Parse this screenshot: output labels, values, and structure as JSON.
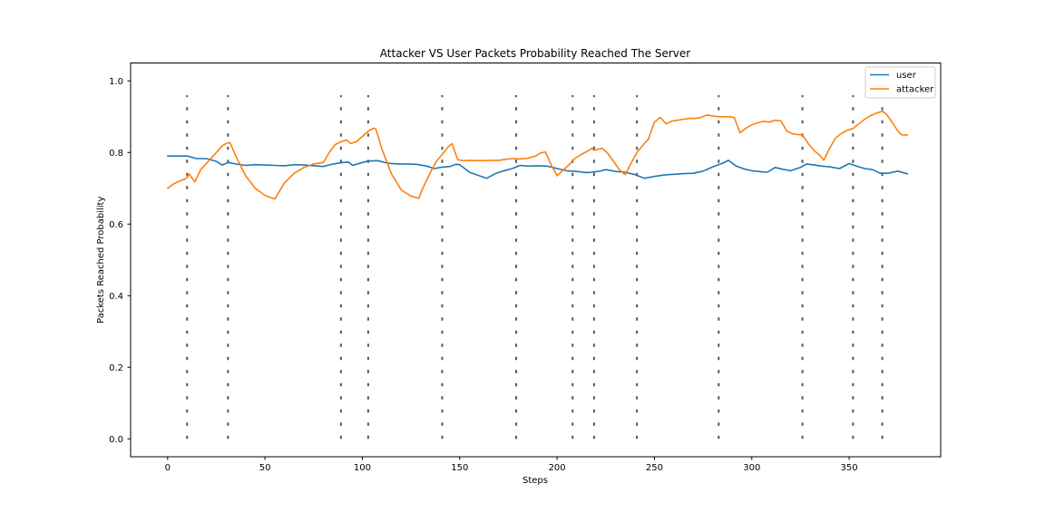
{
  "chart_data": {
    "type": "line",
    "title": "Attacker VS User Packets Probability Reached The Server",
    "xlabel": "Steps",
    "ylabel": "Packets Reached Probability",
    "xlim": [
      -19,
      397
    ],
    "ylim": [
      -0.05,
      1.05
    ],
    "xticks": [
      0,
      50,
      100,
      150,
      200,
      250,
      300,
      350
    ],
    "yticks": [
      0.0,
      0.2,
      0.4,
      0.6,
      0.8,
      1.0
    ],
    "ytick_labels": [
      "0.0",
      "0.2",
      "0.4",
      "0.6",
      "0.8",
      "1.0"
    ],
    "grid": false,
    "legend_position": "top-right",
    "vlines": {
      "x": [
        10,
        31,
        89,
        103,
        141,
        179,
        208,
        219,
        241,
        283,
        326,
        352,
        367
      ],
      "ymin": 0.0,
      "ymax": 0.96,
      "color": "#555555",
      "style": "dashed"
    },
    "series": [
      {
        "name": "user",
        "color": "#1f77b4",
        "x": [
          0,
          5,
          10,
          15,
          20,
          25,
          28,
          31,
          35,
          40,
          45,
          50,
          55,
          60,
          65,
          70,
          75,
          80,
          85,
          90,
          93,
          95,
          100,
          103,
          108,
          113,
          118,
          123,
          128,
          133,
          137,
          141,
          145,
          148,
          150,
          155,
          160,
          164,
          168,
          172,
          177,
          181,
          185,
          190,
          195,
          200,
          205,
          210,
          215,
          218,
          222,
          225,
          230,
          235,
          240,
          245,
          250,
          255,
          260,
          265,
          270,
          275,
          280,
          285,
          288,
          292,
          296,
          300,
          305,
          308,
          312,
          316,
          320,
          325,
          328,
          332,
          336,
          340,
          345,
          350,
          355,
          358,
          362,
          366,
          370,
          375,
          380
        ],
        "y": [
          0.79,
          0.79,
          0.79,
          0.783,
          0.783,
          0.775,
          0.765,
          0.772,
          0.768,
          0.764,
          0.766,
          0.765,
          0.764,
          0.763,
          0.766,
          0.765,
          0.763,
          0.761,
          0.768,
          0.772,
          0.773,
          0.764,
          0.772,
          0.776,
          0.777,
          0.77,
          0.768,
          0.768,
          0.767,
          0.762,
          0.755,
          0.759,
          0.761,
          0.767,
          0.766,
          0.745,
          0.735,
          0.728,
          0.74,
          0.748,
          0.755,
          0.764,
          0.762,
          0.763,
          0.762,
          0.755,
          0.749,
          0.747,
          0.744,
          0.745,
          0.748,
          0.752,
          0.747,
          0.745,
          0.738,
          0.728,
          0.733,
          0.737,
          0.739,
          0.741,
          0.742,
          0.748,
          0.76,
          0.77,
          0.778,
          0.762,
          0.754,
          0.749,
          0.746,
          0.745,
          0.758,
          0.753,
          0.749,
          0.758,
          0.768,
          0.765,
          0.762,
          0.76,
          0.755,
          0.769,
          0.76,
          0.755,
          0.752,
          0.742,
          0.742,
          0.748,
          0.74
        ]
      },
      {
        "name": "attacker",
        "color": "#ff7f0e",
        "x": [
          0,
          3,
          6,
          9,
          10,
          11,
          12,
          14,
          17,
          20,
          25,
          28,
          30,
          31,
          32,
          35,
          40,
          45,
          50,
          55,
          60,
          65,
          70,
          75,
          80,
          83,
          86,
          89,
          90,
          92,
          94,
          97,
          100,
          103,
          106,
          107,
          110,
          115,
          120,
          125,
          129,
          131,
          135,
          138,
          141,
          144,
          146,
          149,
          152,
          155,
          160,
          165,
          170,
          175,
          178,
          180,
          184,
          189,
          191,
          194,
          197,
          200,
          203,
          206,
          209,
          212,
          215,
          217,
          218,
          219,
          223,
          226,
          229,
          232,
          235,
          238,
          241,
          244,
          247,
          249,
          250,
          253,
          256,
          259,
          262,
          265,
          268,
          271,
          274,
          277,
          280,
          283,
          286,
          289,
          291,
          294,
          297,
          300,
          303,
          306,
          309,
          312,
          315,
          318,
          321,
          324,
          326,
          329,
          332,
          335,
          337,
          340,
          343,
          346,
          349,
          352,
          355,
          358,
          361,
          364,
          367,
          369,
          372,
          375,
          377,
          380
        ],
        "y": [
          0.7,
          0.712,
          0.72,
          0.726,
          0.73,
          0.74,
          0.733,
          0.718,
          0.752,
          0.77,
          0.8,
          0.818,
          0.825,
          0.826,
          0.828,
          0.79,
          0.735,
          0.7,
          0.68,
          0.67,
          0.715,
          0.742,
          0.758,
          0.768,
          0.772,
          0.8,
          0.822,
          0.83,
          0.832,
          0.835,
          0.825,
          0.83,
          0.845,
          0.86,
          0.868,
          0.865,
          0.81,
          0.74,
          0.695,
          0.678,
          0.672,
          0.7,
          0.745,
          0.775,
          0.795,
          0.815,
          0.825,
          0.78,
          0.777,
          0.778,
          0.777,
          0.778,
          0.778,
          0.782,
          0.783,
          0.782,
          0.783,
          0.79,
          0.797,
          0.802,
          0.765,
          0.735,
          0.75,
          0.765,
          0.783,
          0.793,
          0.802,
          0.808,
          0.812,
          0.806,
          0.812,
          0.798,
          0.775,
          0.752,
          0.738,
          0.77,
          0.8,
          0.82,
          0.838,
          0.87,
          0.885,
          0.898,
          0.88,
          0.888,
          0.89,
          0.893,
          0.895,
          0.895,
          0.898,
          0.905,
          0.902,
          0.9,
          0.9,
          0.9,
          0.897,
          0.855,
          0.868,
          0.877,
          0.883,
          0.887,
          0.885,
          0.89,
          0.888,
          0.86,
          0.852,
          0.85,
          0.849,
          0.825,
          0.805,
          0.792,
          0.778,
          0.812,
          0.84,
          0.853,
          0.862,
          0.867,
          0.88,
          0.893,
          0.903,
          0.91,
          0.915,
          0.908,
          0.885,
          0.86,
          0.849,
          0.849
        ]
      }
    ]
  }
}
